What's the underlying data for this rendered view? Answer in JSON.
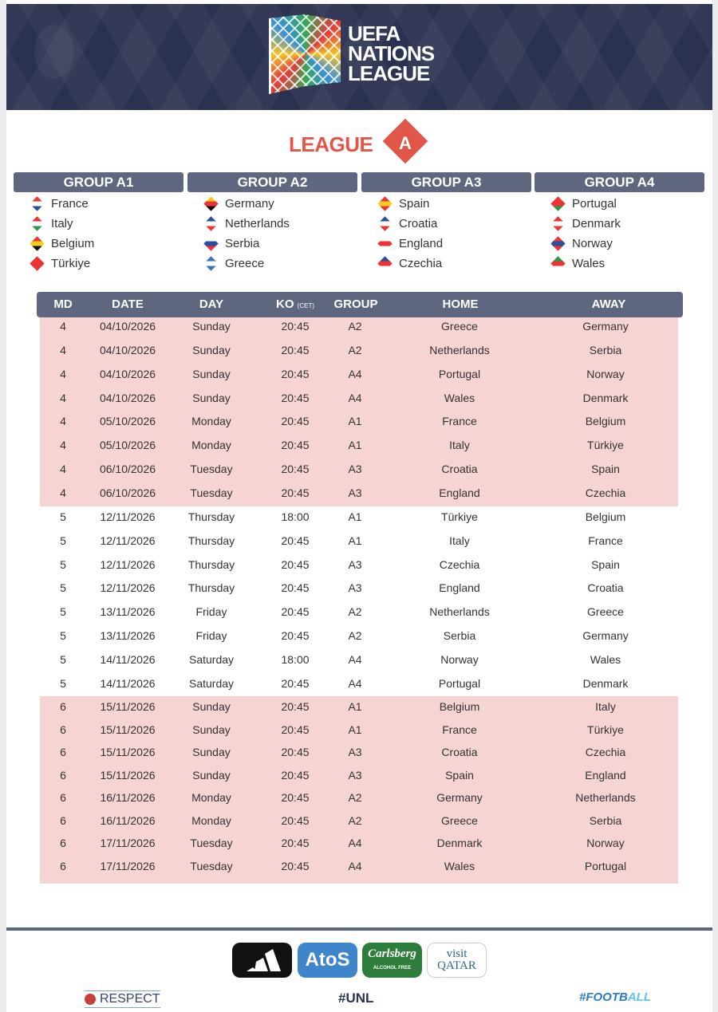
{
  "header": {
    "logo_text": [
      "UEFA",
      "NATIONS",
      "LEAGUE"
    ]
  },
  "league": {
    "word": "LEAGUE",
    "letter": "A",
    "color": "#e0574a"
  },
  "groups": [
    {
      "name": "GROUP A1",
      "teams": [
        {
          "name": "France",
          "flag": [
            "#2a4fa0",
            "#fff",
            "#e33"
          ]
        },
        {
          "name": "Italy",
          "flag": [
            "#2a9a4a",
            "#fff",
            "#e33"
          ]
        },
        {
          "name": "Belgium",
          "flag": [
            "#111",
            "#f5cf1e",
            "#e33"
          ]
        },
        {
          "name": "Türkiye",
          "flag": [
            "#e33",
            "#e33",
            "#e33"
          ]
        }
      ]
    },
    {
      "name": "GROUP A2",
      "teams": [
        {
          "name": "Germany",
          "flag": [
            "#111",
            "#e33",
            "#f5cf1e"
          ]
        },
        {
          "name": "Netherlands",
          "flag": [
            "#e33",
            "#fff",
            "#2a4fa0"
          ]
        },
        {
          "name": "Serbia",
          "flag": [
            "#e33",
            "#2a4fa0",
            "#fff"
          ]
        },
        {
          "name": "Greece",
          "flag": [
            "#3a73c8",
            "#fff",
            "#3a73c8"
          ]
        }
      ]
    },
    {
      "name": "GROUP A3",
      "teams": [
        {
          "name": "Spain",
          "flag": [
            "#e33",
            "#f5cf1e",
            "#e33"
          ]
        },
        {
          "name": "Croatia",
          "flag": [
            "#e33",
            "#fff",
            "#2a4fa0"
          ]
        },
        {
          "name": "England",
          "flag": [
            "#fff",
            "#e33",
            "#fff"
          ]
        },
        {
          "name": "Czechia",
          "flag": [
            "#fff",
            "#e33",
            "#2a4fa0"
          ]
        }
      ]
    },
    {
      "name": "GROUP A4",
      "teams": [
        {
          "name": "Portugal",
          "flag": [
            "#2a9a4a",
            "#e33",
            "#e33"
          ]
        },
        {
          "name": "Denmark",
          "flag": [
            "#e33",
            "#fff",
            "#e33"
          ]
        },
        {
          "name": "Norway",
          "flag": [
            "#e33",
            "#2a4fa0",
            "#e33"
          ]
        },
        {
          "name": "Wales",
          "flag": [
            "#fff",
            "#e33",
            "#2a9a4a"
          ]
        }
      ]
    }
  ],
  "table": {
    "headers": {
      "md": "MD",
      "date": "DATE",
      "day": "DAY",
      "ko": "KO",
      "ko_note": "(CET)",
      "group": "GROUP",
      "home": "HOME",
      "away": "AWAY"
    },
    "highlight_color": "#f6d4d3",
    "rows": [
      [
        "4",
        "04/10/2026",
        "Sunday",
        "20:45",
        "A2",
        "Greece",
        "Germany"
      ],
      [
        "4",
        "04/10/2026",
        "Sunday",
        "20:45",
        "A2",
        "Netherlands",
        "Serbia"
      ],
      [
        "4",
        "04/10/2026",
        "Sunday",
        "20:45",
        "A4",
        "Portugal",
        "Norway"
      ],
      [
        "4",
        "04/10/2026",
        "Sunday",
        "20:45",
        "A4",
        "Wales",
        "Denmark"
      ],
      [
        "4",
        "05/10/2026",
        "Monday",
        "20:45",
        "A1",
        "France",
        "Belgium"
      ],
      [
        "4",
        "05/10/2026",
        "Monday",
        "20:45",
        "A1",
        "Italy",
        "Türkiye"
      ],
      [
        "4",
        "06/10/2026",
        "Tuesday",
        "20:45",
        "A3",
        "Croatia",
        "Spain"
      ],
      [
        "4",
        "06/10/2026",
        "Tuesday",
        "20:45",
        "A3",
        "England",
        "Czechia"
      ],
      [
        "5",
        "12/11/2026",
        "Thursday",
        "18:00",
        "A1",
        "Türkiye",
        "Belgium"
      ],
      [
        "5",
        "12/11/2026",
        "Thursday",
        "20:45",
        "A1",
        "Italy",
        "France"
      ],
      [
        "5",
        "12/11/2026",
        "Thursday",
        "20:45",
        "A3",
        "Czechia",
        "Spain"
      ],
      [
        "5",
        "12/11/2026",
        "Thursday",
        "20:45",
        "A3",
        "England",
        "Croatia"
      ],
      [
        "5",
        "13/11/2026",
        "Friday",
        "20:45",
        "A2",
        "Netherlands",
        "Greece"
      ],
      [
        "5",
        "13/11/2026",
        "Friday",
        "20:45",
        "A2",
        "Serbia",
        "Germany"
      ],
      [
        "5",
        "14/11/2026",
        "Saturday",
        "18:00",
        "A4",
        "Norway",
        "Wales"
      ],
      [
        "5",
        "14/11/2026",
        "Saturday",
        "20:45",
        "A4",
        "Portugal",
        "Denmark"
      ],
      [
        "6",
        "15/11/2026",
        "Sunday",
        "20:45",
        "A1",
        "Belgium",
        "Italy"
      ],
      [
        "6",
        "15/11/2026",
        "Sunday",
        "20:45",
        "A1",
        "France",
        "Türkiye"
      ],
      [
        "6",
        "15/11/2026",
        "Sunday",
        "20:45",
        "A3",
        "Croatia",
        "Czechia"
      ],
      [
        "6",
        "15/11/2026",
        "Sunday",
        "20:45",
        "A3",
        "Spain",
        "England"
      ],
      [
        "6",
        "16/11/2026",
        "Monday",
        "20:45",
        "A2",
        "Germany",
        "Netherlands"
      ],
      [
        "6",
        "16/11/2026",
        "Monday",
        "20:45",
        "A2",
        "Greece",
        "Serbia"
      ],
      [
        "6",
        "17/11/2026",
        "Tuesday",
        "20:45",
        "A4",
        "Denmark",
        "Norway"
      ],
      [
        "6",
        "17/11/2026",
        "Tuesday",
        "20:45",
        "A4",
        "Wales",
        "Portugal"
      ]
    ]
  },
  "sponsors": {
    "atos": "AtoS",
    "carlsberg": "Carlsberg",
    "carlsberg_sub": "ALCOHOL FREE",
    "qatar_top": "visit",
    "qatar_bottom": "QATAR"
  },
  "footer": {
    "respect": "RESPECT",
    "hashtag": "#UNL",
    "football": "#FOOTB",
    "football_accent": "ALL"
  }
}
